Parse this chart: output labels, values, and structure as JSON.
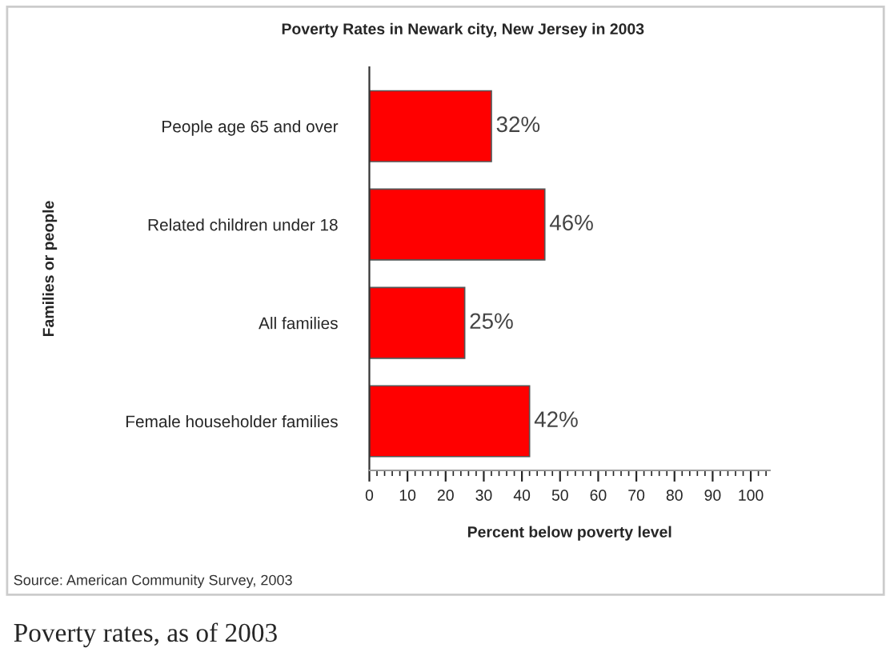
{
  "chart_data": {
    "type": "bar",
    "orientation": "horizontal",
    "title": "Poverty Rates in Newark city, New Jersey in 2003",
    "xlabel": "Percent below poverty level",
    "ylabel": "Families or people",
    "categories": [
      "People age 65 and over",
      "Related children under 18",
      "All families",
      "Female householder families"
    ],
    "values": [
      32,
      46,
      25,
      42
    ],
    "color": "#ff0000",
    "value_labels": [
      "32%",
      "46%",
      "25%",
      "42%"
    ],
    "xlim": [
      0,
      105
    ],
    "xticks": [
      0,
      10,
      20,
      30,
      40,
      50,
      60,
      70,
      80,
      90,
      100
    ],
    "grid": false,
    "legend": false,
    "annotations": [
      "Source: American Community Survey, 2003",
      "Poverty rates, as of 2003"
    ]
  }
}
